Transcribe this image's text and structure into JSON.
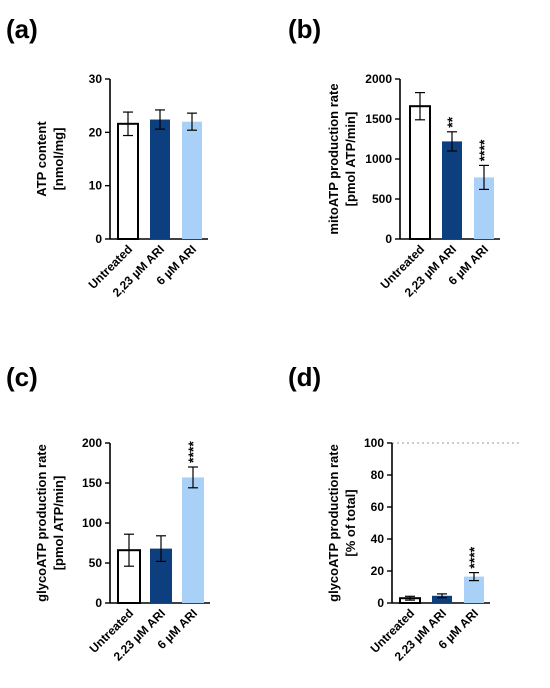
{
  "colors": {
    "untreated": "#ffffff",
    "dark": "#0d3f7f",
    "light": "#a9d1f7",
    "stroke": "#000000",
    "reference_line": "#9a9a9a"
  },
  "chart_data": [
    {
      "panel_label": "(a)",
      "type": "bar",
      "categories": [
        "Untreated",
        "2,23 µM ARI",
        "6 µM ARI"
      ],
      "values": [
        21.6,
        22.4,
        22.0
      ],
      "errors": [
        2.2,
        1.8,
        1.6
      ],
      "significance": [
        "",
        "",
        ""
      ],
      "ylabel": [
        "ATP content",
        "[nmol/mg]"
      ],
      "ylim": [
        0,
        30
      ],
      "yticks": [
        "0",
        "10",
        "20",
        "30"
      ],
      "grid": false,
      "reference_line": null
    },
    {
      "panel_label": "(b)",
      "type": "bar",
      "categories": [
        "Untreated",
        "2,23 µM ARI",
        "6 µM ARI"
      ],
      "values": [
        1660,
        1220,
        770
      ],
      "errors": [
        170,
        120,
        150
      ],
      "significance": [
        "",
        "**",
        "****"
      ],
      "ylabel": [
        "mitoATP production rate",
        "[pmol ATP/min]"
      ],
      "ylim": [
        0,
        2000
      ],
      "yticks": [
        "0",
        "500",
        "1000",
        "1500",
        "2000"
      ],
      "grid": false,
      "reference_line": null
    },
    {
      "panel_label": "(c)",
      "type": "bar",
      "categories": [
        "Untreated",
        "2.23 µM ARI",
        "6 µM ARI"
      ],
      "values": [
        66,
        68,
        157
      ],
      "errors": [
        20,
        16,
        13
      ],
      "significance": [
        "",
        "",
        "****"
      ],
      "ylabel": [
        "glycoATP production rate",
        "[pmol ATP/min]"
      ],
      "ylim": [
        0,
        200
      ],
      "yticks": [
        "0",
        "50",
        "100",
        "150",
        "200"
      ],
      "grid": false,
      "reference_line": null
    },
    {
      "panel_label": "(d)",
      "type": "bar",
      "categories": [
        "Untreated",
        "2.23 µM ARI",
        "6 µM ARI"
      ],
      "values": [
        3,
        4.5,
        16.5
      ],
      "errors": [
        1.2,
        1.2,
        2.5
      ],
      "significance": [
        "",
        "",
        "****"
      ],
      "ylabel": [
        "glycoATP production rate",
        "[% of total]"
      ],
      "ylim": [
        0,
        100
      ],
      "yticks": [
        "0",
        "20",
        "40",
        "60",
        "80",
        "100"
      ],
      "grid": false,
      "reference_line": 100
    }
  ]
}
